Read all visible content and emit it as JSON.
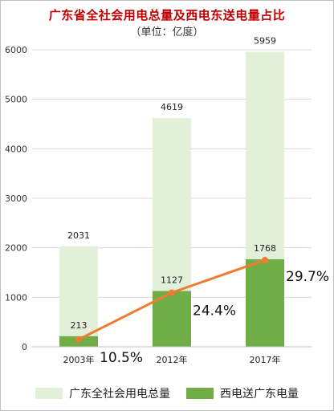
{
  "chart_data": {
    "type": "bar",
    "title": "广东省全社会用电总量及西电东送电量占比",
    "subtitle": "（单位：亿度）",
    "categories": [
      "2003年",
      "2012年",
      "2017年"
    ],
    "ylim": [
      0,
      6000
    ],
    "yticks": [
      "0",
      "1000",
      "2000",
      "3000",
      "4000",
      "5000",
      "6000"
    ],
    "grid": true,
    "legend_position": "bottom",
    "series": [
      {
        "name": "广东全社会用电总量",
        "values": [
          2031,
          4619,
          5959
        ],
        "labels": [
          "2031",
          "4619",
          "5959"
        ],
        "color": "#e2efd9"
      },
      {
        "name": "西电送广东电量",
        "values": [
          213,
          1127,
          1768
        ],
        "labels": [
          "213",
          "1127",
          "1768"
        ],
        "color": "#70ad47"
      }
    ],
    "ratio_line": {
      "labels": [
        "10.5%",
        "24.4%",
        "29.7%"
      ],
      "color": "#ed7d31"
    }
  }
}
